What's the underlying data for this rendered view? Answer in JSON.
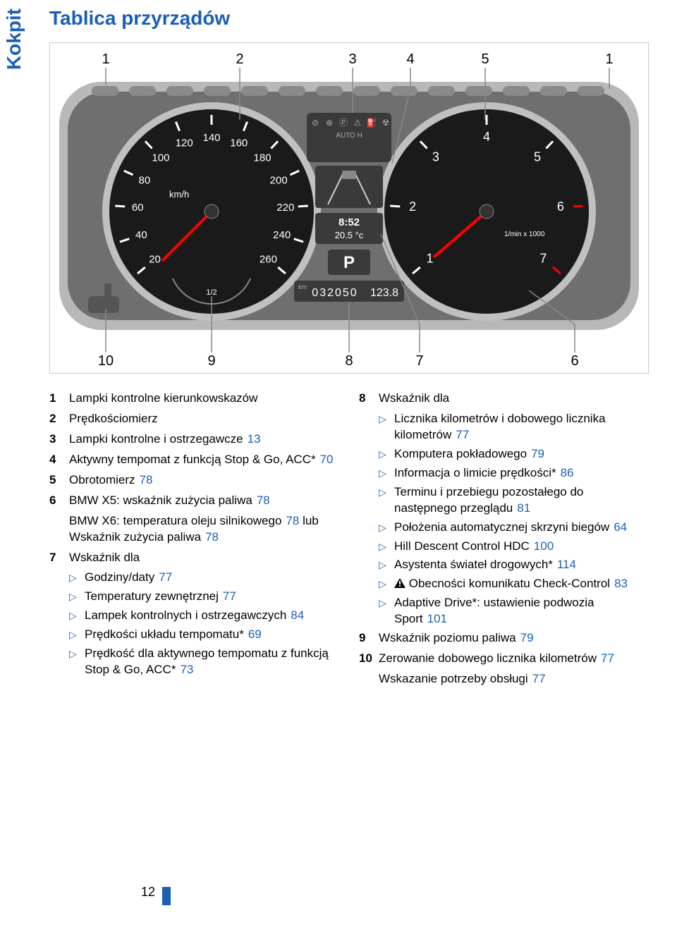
{
  "side_tab": "Kokpit",
  "title": "Tablica przyrządów",
  "page_number": "12",
  "diagram": {
    "top_labels": [
      "1",
      "2",
      "3",
      "4",
      "5",
      "1"
    ],
    "bottom_labels": [
      "10",
      "9",
      "8",
      "7",
      "6"
    ],
    "speedo": {
      "unit": "km/h",
      "ticks": [
        "20",
        "40",
        "60",
        "80",
        "100",
        "120",
        "140",
        "160",
        "180",
        "200",
        "220",
        "240",
        "260"
      ]
    },
    "tacho": {
      "unit": "1/min x 1000",
      "ticks": [
        "1",
        "2",
        "3",
        "4",
        "5",
        "6",
        "7"
      ]
    },
    "center": {
      "time": "8:52",
      "temp": "20.5 °c",
      "gear": "P",
      "odo": "032050",
      "trip": "123.8",
      "odo_unit": "km"
    },
    "fuel_half": "1/2",
    "colors": {
      "panel_bg": "#6f6f6f",
      "dashboard": "#b8b8b8",
      "gauge_face": "#1a1a1a",
      "gauge_ring": "#c0c0c0",
      "text_white": "#ffffff",
      "needle": "#ff0000",
      "lcd": "#3a3a3a",
      "bracket": "#888888"
    }
  },
  "list_left": [
    {
      "n": "1",
      "t": "Lampki kontrolne kierunkowskazów"
    },
    {
      "n": "2",
      "t": "Prędkościomierz"
    },
    {
      "n": "3",
      "t": [
        {
          "s": "Lampki kontrolne i ostrzegawcze"
        },
        {
          "p": "13"
        }
      ]
    },
    {
      "n": "4",
      "t": [
        {
          "s": "Aktywny tempomat z funkcją Stop & Go, ACC*"
        },
        {
          "p": "70"
        }
      ]
    },
    {
      "n": "5",
      "t": [
        {
          "s": "Obrotomierz"
        },
        {
          "p": "78"
        }
      ]
    },
    {
      "n": "6",
      "t": [
        {
          "s": "BMW X5: wskaźnik zużycia paliwa"
        },
        {
          "p": "78"
        }
      ]
    },
    {
      "n": "",
      "t": [
        {
          "s": "BMW X6: temperatura oleju silnikowego"
        },
        {
          "p": "78"
        },
        {
          "s": " lub Wskaźnik zużycia paliwa"
        },
        {
          "p": "78"
        }
      ],
      "cont": true
    },
    {
      "n": "7",
      "t": "Wskaźnik dla"
    }
  ],
  "list_left_sub": [
    [
      {
        "s": "Godziny/daty"
      },
      {
        "p": "77"
      }
    ],
    [
      {
        "s": "Temperatury zewnętrznej"
      },
      {
        "p": "77"
      }
    ],
    [
      {
        "s": "Lampek kontrolnych i ostrzegawczych"
      },
      {
        "p": "84"
      }
    ],
    [
      {
        "s": "Prędkości układu tempomatu*"
      },
      {
        "p": "69"
      }
    ],
    [
      {
        "s": "Prędkość dla aktywnego tempomatu z funkcją Stop & Go, ACC*"
      },
      {
        "p": "73"
      }
    ]
  ],
  "list_right": [
    {
      "n": "8",
      "t": "Wskaźnik dla"
    }
  ],
  "list_right_sub": [
    [
      {
        "s": "Licznika kilometrów i dobowego licznika kilometrów"
      },
      {
        "p": "77"
      }
    ],
    [
      {
        "s": "Komputera pokładowego"
      },
      {
        "p": "79"
      }
    ],
    [
      {
        "s": "Informacja o limicie prędkości*"
      },
      {
        "p": "86"
      }
    ],
    [
      {
        "s": "Terminu i przebiegu pozostałego do następnego przeglądu"
      },
      {
        "p": "81"
      }
    ],
    [
      {
        "s": "Położenia automatycznej skrzyni biegów"
      },
      {
        "p": "64"
      }
    ],
    [
      {
        "s": "Hill Descent Control HDC"
      },
      {
        "p": "100"
      }
    ],
    [
      {
        "s": "Asystenta świateł drogowych*"
      },
      {
        "p": "114"
      }
    ],
    [
      {
        "warn": true
      },
      {
        "s": " Obecności komunikatu Check-Control"
      },
      {
        "p": "83"
      }
    ],
    [
      {
        "s": "Adaptive Drive*: ustawienie podwozia Sport"
      },
      {
        "p": "101"
      }
    ]
  ],
  "list_right_tail": [
    {
      "n": "9",
      "t": [
        {
          "s": "Wskaźnik poziomu paliwa"
        },
        {
          "p": "79"
        }
      ]
    },
    {
      "n": "10",
      "t": [
        {
          "s": "Zerowanie dobowego licznika kilometrów"
        },
        {
          "p": "77"
        }
      ]
    },
    {
      "n": "",
      "t": [
        {
          "s": "Wskazanie potrzeby obsługi"
        },
        {
          "p": "77"
        }
      ],
      "cont": true
    }
  ]
}
